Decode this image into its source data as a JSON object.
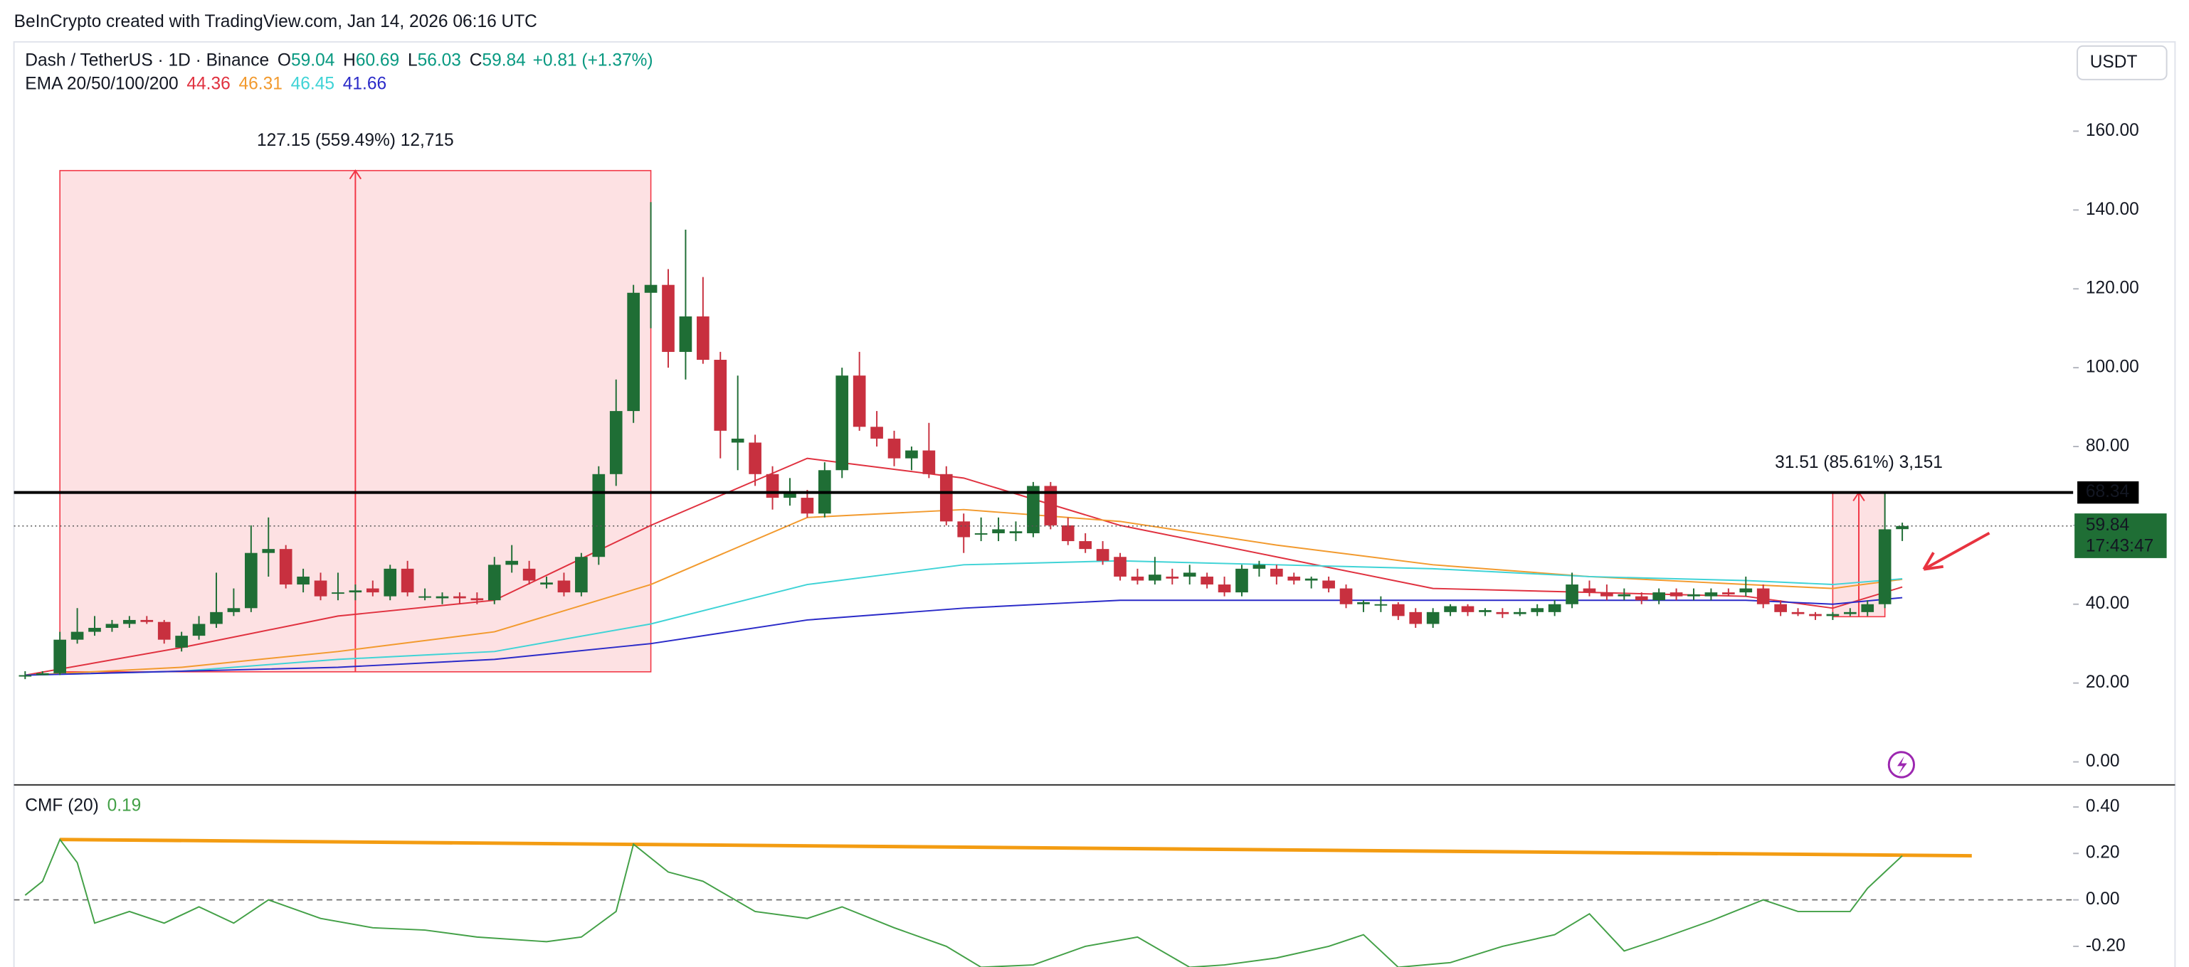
{
  "header": {
    "credit": "BeInCrypto created with TradingView.com, Jan 14, 2026 06:16 UTC",
    "currency_button": "USDT"
  },
  "chart_data": [
    {
      "type": "candlestick",
      "title": "Dash / TetherUS · 1D · Binance",
      "quote_labels": [
        "O",
        "H",
        "L",
        "C"
      ],
      "change": "+0.81 (+1.37%)",
      "countdown": "17:43:47",
      "up_color": "#1f6e35",
      "down_color": "#c8303f",
      "xlim": [
        -0.643,
        117.83
      ],
      "ylim": [
        -5.66,
        182.65
      ],
      "yticks": [
        {
          "value": 0,
          "label": "0.00"
        },
        {
          "value": 20,
          "label": "20.00"
        },
        {
          "value": 40,
          "label": "40.00"
        },
        {
          "value": 60,
          "label": "60.00"
        },
        {
          "value": 80,
          "label": "80.00"
        },
        {
          "value": 100,
          "label": "100.00"
        },
        {
          "value": 120,
          "label": "120.00"
        },
        {
          "value": 140,
          "label": "140.00"
        },
        {
          "value": 160,
          "label": "160.00"
        }
      ],
      "candles": {
        "open": [
          22,
          22,
          22.5,
          31,
          33,
          34,
          35,
          36,
          35.5,
          29,
          32,
          35,
          38,
          39,
          53,
          54,
          45,
          46,
          43,
          43,
          44,
          42,
          49,
          42,
          41.5,
          42,
          41.5,
          41,
          50,
          49,
          45,
          46,
          43,
          52,
          73,
          89,
          119,
          121,
          104,
          113,
          102,
          81,
          81,
          73,
          67,
          67,
          63,
          74,
          98,
          85,
          82,
          77,
          79,
          73,
          61,
          58,
          58,
          58,
          58,
          70,
          60,
          56,
          54,
          52,
          47,
          46,
          47,
          47,
          47,
          45,
          43,
          49,
          49,
          47,
          46,
          46,
          44,
          40,
          40,
          40,
          38,
          35,
          38,
          39.5,
          38,
          38,
          37.5,
          38,
          38,
          40,
          44,
          43,
          42,
          42,
          41,
          43,
          42,
          42,
          43,
          43,
          44,
          40,
          38,
          37.5,
          37,
          37.5,
          38,
          40,
          59.04
        ],
        "high": [
          23,
          23,
          33,
          39,
          37,
          36,
          37,
          37,
          36,
          33,
          37,
          48,
          44,
          60,
          62,
          55,
          49,
          48,
          48,
          45,
          46,
          50,
          51,
          44,
          43,
          43,
          43,
          52,
          55,
          51,
          47,
          48,
          53,
          75,
          97,
          121,
          142,
          125,
          135,
          123,
          104,
          98,
          83,
          75,
          72,
          69,
          76,
          100,
          104,
          89,
          84,
          80,
          86,
          75,
          63,
          62,
          62,
          61,
          71,
          71,
          62,
          58,
          56,
          53,
          49,
          52,
          49,
          50,
          48,
          47,
          50,
          51,
          50,
          48,
          47,
          47,
          45,
          41,
          42,
          40.5,
          39,
          39,
          40,
          40,
          39,
          39,
          39,
          40,
          41,
          48,
          46,
          45,
          44,
          43,
          44,
          44,
          44,
          44,
          44,
          47,
          45,
          41,
          39,
          38,
          38,
          39,
          41,
          68.34,
          60.69
        ],
        "low": [
          21,
          22,
          22,
          30,
          32,
          33,
          34,
          35,
          30,
          28,
          31,
          34,
          37,
          38,
          47,
          44,
          43,
          41,
          41,
          41,
          42,
          41,
          42,
          41,
          40,
          40,
          40,
          40,
          48,
          45,
          44,
          42,
          42,
          50,
          70,
          86,
          110,
          100,
          97,
          101,
          77,
          74,
          70,
          64,
          65,
          62,
          62,
          72,
          84,
          80,
          75,
          74,
          72,
          60,
          53,
          56,
          56,
          56,
          57,
          59,
          55,
          53,
          50,
          46,
          45,
          45,
          45,
          45,
          44,
          42,
          42,
          47,
          45,
          45,
          44,
          43,
          39,
          38,
          38,
          36,
          34,
          34,
          37,
          37,
          37,
          36.5,
          37,
          37,
          37,
          39,
          42,
          41,
          41,
          40,
          40,
          41,
          41,
          41,
          42,
          42,
          39,
          37,
          37,
          36,
          36,
          37,
          37,
          39,
          56.03
        ],
        "close": [
          22,
          22.5,
          31,
          33,
          34,
          35,
          36,
          35.5,
          31,
          32,
          35,
          38,
          39,
          53,
          54,
          45,
          47,
          42,
          43,
          43.5,
          43,
          49,
          43,
          42,
          42,
          41.5,
          41,
          50,
          51,
          46,
          45.5,
          43,
          52,
          73,
          89,
          119,
          121,
          104,
          113,
          102,
          84,
          82,
          73,
          67,
          68,
          63,
          74,
          98,
          85,
          82,
          77,
          79,
          73,
          61,
          57,
          58,
          59,
          58.5,
          70,
          60,
          56,
          54,
          51,
          47,
          46,
          47.5,
          46.5,
          48,
          45,
          43,
          49,
          50,
          47,
          46,
          46.5,
          44,
          40,
          40.5,
          40,
          37,
          35,
          38,
          39.5,
          38,
          38.5,
          37.5,
          38,
          39,
          40,
          45,
          43,
          42,
          42.5,
          41,
          43,
          42,
          42.5,
          43,
          42.5,
          44,
          40,
          38,
          37.5,
          37,
          37.5,
          38,
          40,
          59,
          59.84
        ]
      },
      "indicator": {
        "label": "EMA 20/50/100/200",
        "series": [
          {
            "color": "#e0313f",
            "x": [
              0,
              9,
              18,
              27,
              36,
              45,
              54,
              63,
              72,
              81,
              90,
              99,
              104,
              108
            ],
            "values": [
              22,
              29,
              37,
              41,
              60,
              77,
              72,
              60,
              52,
              44,
              43,
              42,
              39,
              44.36
            ]
          },
          {
            "color": "#f29a2e",
            "x": [
              0,
              9,
              18,
              27,
              36,
              45,
              54,
              63,
              72,
              81,
              90,
              99,
              104,
              108
            ],
            "values": [
              22,
              24,
              28,
              33,
              45,
              62,
              64,
              61,
              55,
              50,
              47,
              45,
              44,
              46.31
            ]
          },
          {
            "color": "#3fd3d6",
            "x": [
              0,
              9,
              18,
              27,
              36,
              45,
              54,
              63,
              72,
              81,
              90,
              99,
              104,
              108
            ],
            "values": [
              22,
              23,
              26,
              28,
              35,
              45,
              50,
              51,
              50,
              49,
              47,
              46,
              45,
              46.45
            ]
          },
          {
            "color": "#2a2ac8",
            "x": [
              0,
              9,
              18,
              27,
              36,
              45,
              54,
              63,
              72,
              81,
              90,
              99,
              104,
              108
            ],
            "values": [
              22,
              23,
              24,
              26,
              30,
              36,
              39,
              41,
              41,
              41,
              41,
              41,
              40,
              41.66
            ]
          }
        ]
      },
      "hline": 68.34,
      "measures": [
        {
          "x": [
            2,
            36
          ],
          "y": [
            22.85,
            150
          ],
          "label": "127.15 (559.49%) 12,715"
        },
        {
          "x": [
            104,
            107
          ],
          "y": [
            36.83,
            68.34
          ],
          "label": "31.51 (85.61%) 3,151"
        }
      ]
    },
    {
      "type": "line",
      "title": "CMF (20)",
      "color": "#43a047",
      "xlim": [
        -0.643,
        117.83
      ],
      "ylim": [
        -0.289,
        0.492
      ],
      "yticks": [
        {
          "value": -0.2,
          "label": "-0.20"
        },
        {
          "value": 0,
          "label": "0.00"
        },
        {
          "value": 0.2,
          "label": "0.20"
        },
        {
          "value": 0.4,
          "label": "0.40"
        }
      ],
      "zero_line": true,
      "x": [
        0,
        1,
        2,
        3,
        4,
        6,
        8,
        10,
        12,
        14,
        17,
        20,
        23,
        26,
        30,
        32,
        34,
        35,
        37,
        39,
        42,
        45,
        47,
        50,
        53,
        55,
        58,
        61,
        64,
        67,
        69,
        72,
        75,
        77,
        79,
        82,
        85,
        88,
        90,
        92,
        94,
        97,
        100,
        102,
        105,
        106,
        107,
        108
      ],
      "values": [
        0.02,
        0.08,
        0.26,
        0.16,
        -0.1,
        -0.05,
        -0.1,
        -0.03,
        -0.1,
        0,
        -0.08,
        -0.12,
        -0.13,
        -0.16,
        -0.18,
        -0.16,
        -0.05,
        0.24,
        0.12,
        0.08,
        -0.05,
        -0.08,
        -0.03,
        -0.12,
        -0.2,
        -0.29,
        -0.28,
        -0.2,
        -0.16,
        -0.29,
        -0.28,
        -0.25,
        -0.2,
        -0.15,
        -0.29,
        -0.27,
        -0.2,
        -0.15,
        -0.06,
        -0.22,
        -0.17,
        -0.09,
        0,
        -0.05,
        -0.05,
        0.05,
        0.12,
        0.19
      ],
      "trendline": {
        "color": "#f39c12",
        "x": [
          2,
          112
        ],
        "values": [
          0.26,
          0.19
        ]
      }
    }
  ]
}
